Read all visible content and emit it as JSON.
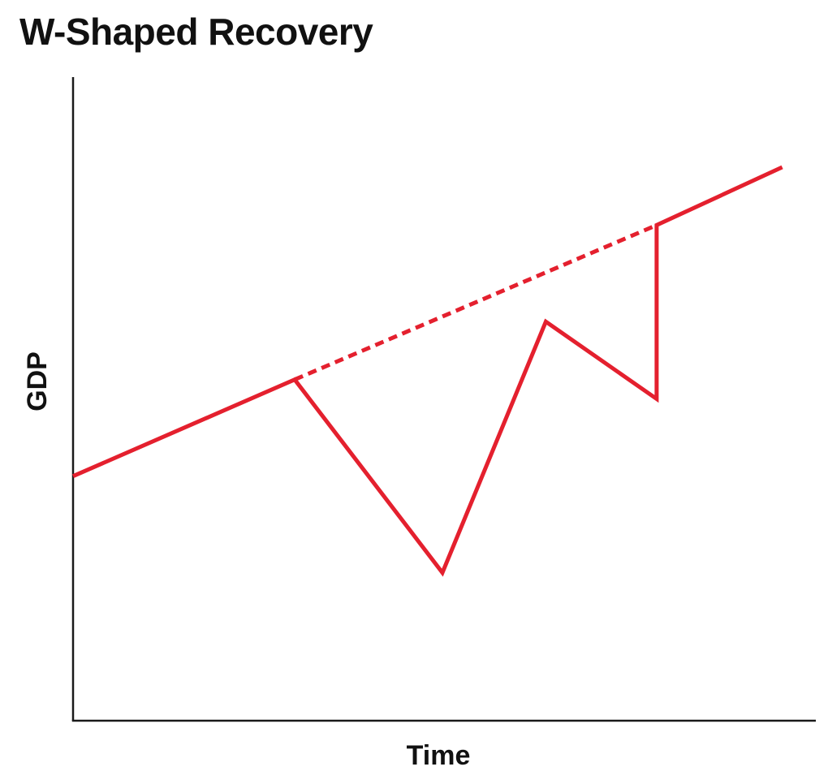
{
  "chart_data": {
    "type": "line",
    "title": "W-Shaped Recovery",
    "xlabel": "Time",
    "ylabel": "GDP",
    "xlim": [
      0,
      100
    ],
    "ylim": [
      0,
      100
    ],
    "grid": false,
    "ticks": false,
    "line_color": "#e4202e",
    "axis_color": "#1a1a1a",
    "series": [
      {
        "style": "solid",
        "points": [
          [
            0,
            38
          ],
          [
            30,
            53
          ],
          [
            50,
            23
          ],
          [
            64,
            62
          ],
          [
            79,
            50
          ],
          [
            79,
            77
          ],
          [
            96,
            86
          ]
        ]
      },
      {
        "style": "dashed",
        "points": [
          [
            30,
            53
          ],
          [
            79,
            77
          ]
        ]
      }
    ]
  }
}
